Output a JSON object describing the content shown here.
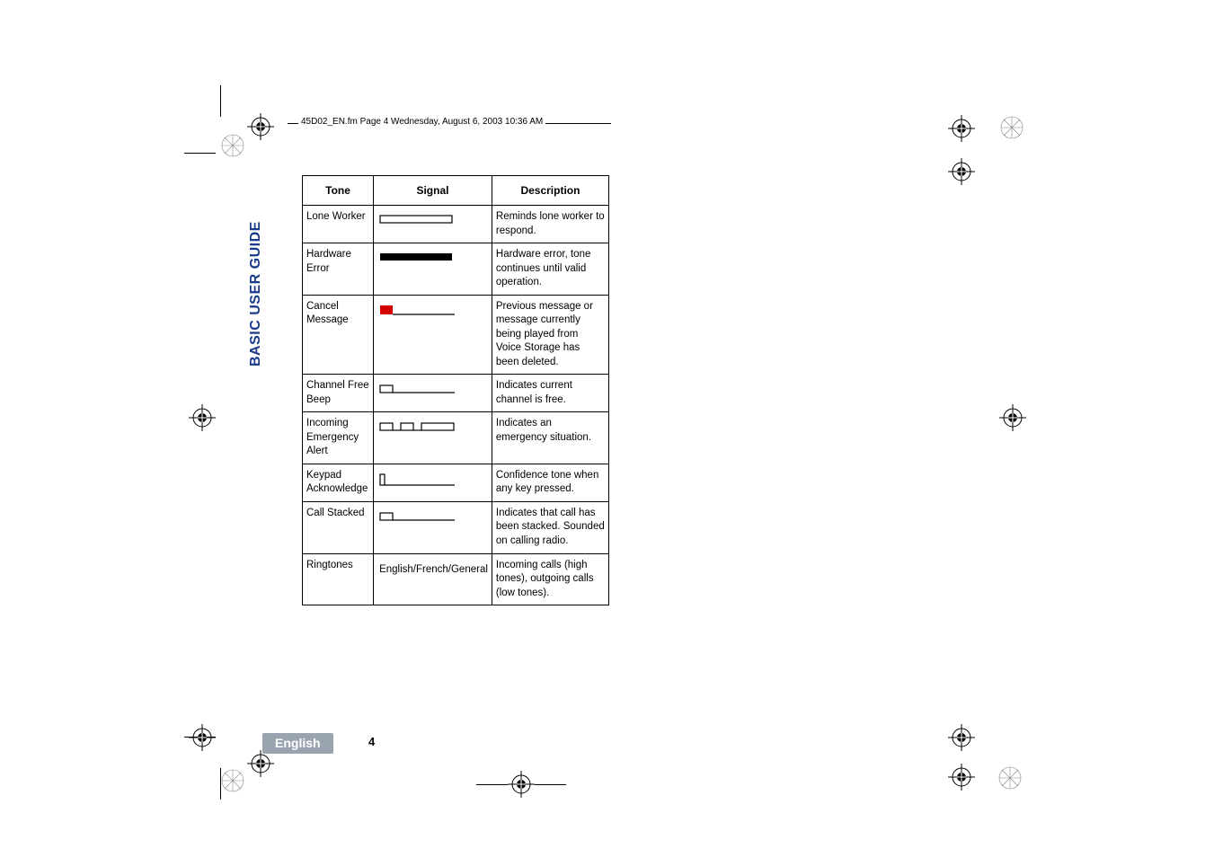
{
  "header_text": "45D02_EN.fm  Page 4  Wednesday, August 6, 2003  10:36 AM",
  "side_tab": "BASIC USER GUIDE",
  "headers": {
    "tone": "Tone",
    "signal": "Signal",
    "description": "Description"
  },
  "rows": [
    {
      "tone": "Lone Worker",
      "signal_type": "outline_bar",
      "description": "Reminds lone worker to respond."
    },
    {
      "tone": "Hardware Error",
      "signal_type": "solid_bar",
      "description": "Hardware error, tone continues until valid operation."
    },
    {
      "tone": "Cancel Message",
      "signal_type": "red_square",
      "description": "Previous message or message currently being played from Voice Storage has been deleted."
    },
    {
      "tone": "Channel Free Beep",
      "signal_type": "small_box_line",
      "description": "Indicates current channel is free."
    },
    {
      "tone": "Incoming Emergency Alert",
      "signal_type": "three_boxes",
      "description": "Indicates an emergency situation."
    },
    {
      "tone": "Keypad Acknowledge",
      "signal_type": "tick_line",
      "description": "Confidence tone when any key pressed."
    },
    {
      "tone": "Call Stacked",
      "signal_type": "small_box_line",
      "description": "Indicates that call has been stacked. Sounded on calling radio."
    },
    {
      "tone": "Ringtones",
      "signal_text": "English/French/General",
      "description": "Incoming calls (high tones), outgoing calls (low tones)."
    }
  ],
  "footer": {
    "language": "English",
    "page": "4"
  },
  "colors": {
    "side_tab": "#1a3a8a",
    "footer_bg": "#9aa4b0",
    "red": "#d40000"
  }
}
